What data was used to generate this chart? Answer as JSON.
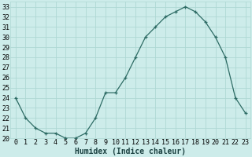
{
  "x": [
    0,
    1,
    2,
    3,
    4,
    5,
    6,
    7,
    8,
    9,
    10,
    11,
    12,
    13,
    14,
    15,
    16,
    17,
    18,
    19,
    20,
    21,
    22,
    23
  ],
  "y": [
    24,
    22,
    21,
    20.5,
    20.5,
    20,
    20,
    20.5,
    22,
    24.5,
    24.5,
    26,
    28,
    30,
    31,
    32,
    32.5,
    33,
    32.5,
    31.5,
    30,
    28,
    24,
    22.5
  ],
  "xlabel": "Humidex (Indice chaleur)",
  "ylabel": "",
  "bg_color": "#cdecea",
  "line_color": "#2d6b64",
  "grid_color": "#aed8d4",
  "xlim": [
    -0.5,
    23.5
  ],
  "ylim": [
    20,
    33.5
  ],
  "ytick_values": [
    20,
    21,
    22,
    23,
    24,
    25,
    26,
    27,
    28,
    29,
    30,
    31,
    32,
    33
  ],
  "tick_fontsize": 6.0,
  "xlabel_fontsize": 7.0,
  "marker_size": 3.5,
  "line_width": 0.9
}
